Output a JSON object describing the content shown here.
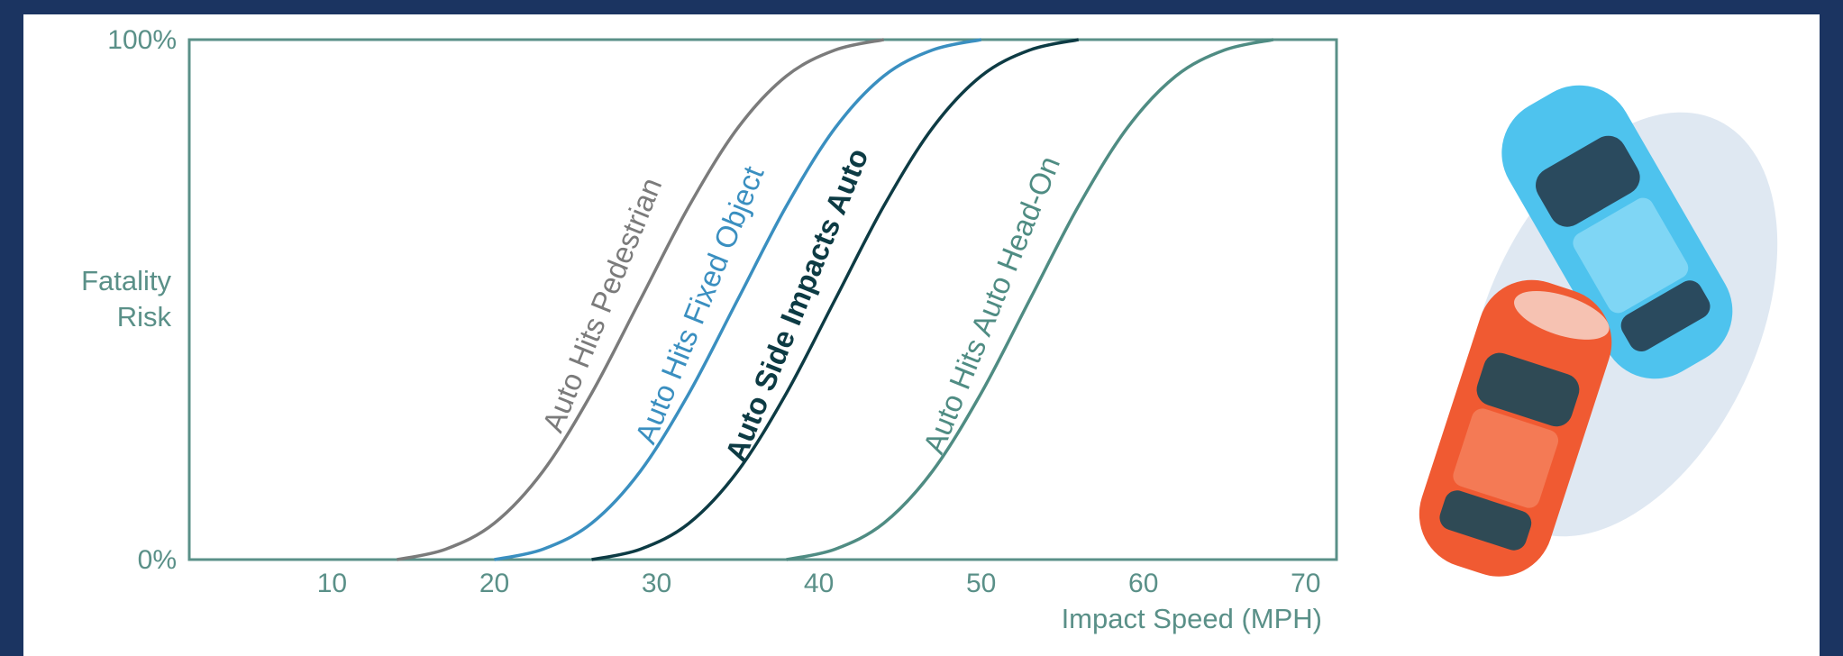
{
  "chart_data": {
    "type": "line",
    "y_label": "Fatality Risk",
    "x_label": "Impact Speed (MPH)",
    "xlim": [
      1.2,
      71.9
    ],
    "ylim": [
      0,
      100
    ],
    "xticks": [
      10,
      20,
      30,
      40,
      50,
      60,
      70
    ],
    "yticks": [
      {
        "value": 0,
        "label": "0%"
      },
      {
        "value": 100,
        "label": "100%"
      }
    ],
    "grid": false,
    "axis_color": "#5a9088",
    "series": [
      {
        "name": "Auto Hits Pedestrian",
        "color": "#7b7b7b",
        "x": [
          14,
          17,
          20,
          23,
          26,
          29,
          32,
          35,
          38,
          41,
          44
        ],
        "values": [
          0,
          2,
          7,
          17,
          32,
          50,
          68,
          83,
          93,
          98,
          100
        ]
      },
      {
        "name": "Auto Hits Fixed Object",
        "color": "#3a8fc0",
        "x": [
          20,
          23,
          26,
          29,
          32,
          35,
          38,
          41,
          44,
          47,
          50
        ],
        "values": [
          0,
          2,
          7,
          17,
          32,
          50,
          68,
          83,
          93,
          98,
          100
        ]
      },
      {
        "name": "Auto Side Impacts Auto",
        "color": "#0d3b44",
        "x": [
          26,
          29,
          32,
          35,
          38,
          41,
          44,
          47,
          50,
          53,
          56
        ],
        "values": [
          0,
          2,
          7,
          17,
          32,
          50,
          68,
          83,
          93,
          98,
          100
        ]
      },
      {
        "name": "Auto Hits Auto Head-On",
        "color": "#4f8c83",
        "x": [
          38,
          41,
          44,
          47,
          50,
          53,
          56,
          59,
          62,
          65,
          68
        ],
        "values": [
          0,
          2,
          7,
          17,
          32,
          50,
          68,
          83,
          93,
          98,
          100
        ]
      }
    ]
  }
}
